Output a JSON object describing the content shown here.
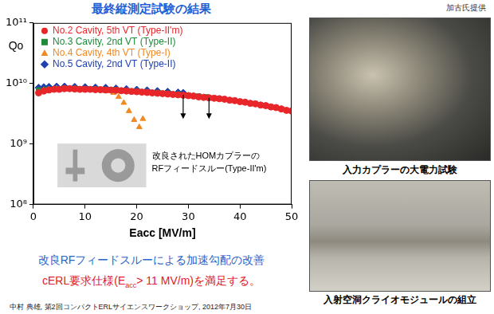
{
  "header": {
    "title": "最終縦測定試験の結果",
    "credit": "加古氏提供"
  },
  "chart_data": {
    "type": "scatter",
    "x_label": "Eacc [MV/m]",
    "y_label": "Qo",
    "log": "y",
    "grid": false,
    "legend": "upper left",
    "xlim": [
      0,
      50
    ],
    "xticks": [
      0,
      10,
      20,
      30,
      40,
      50
    ],
    "ylim": [
      100000000.0,
      100000000000.0
    ],
    "yticks": [
      {
        "value": 100000000.0,
        "label": "10⁸"
      },
      {
        "value": 1000000000.0,
        "label": "10⁹"
      },
      {
        "value": 10000000000.0,
        "label": "10¹⁰"
      },
      {
        "value": 100000000000.0,
        "label": "10¹¹"
      }
    ],
    "series": [
      {
        "name": "No.2 Cavity, 5th VT (Type-II'm)",
        "color": "#e8262a",
        "marker": "circle",
        "x": [
          1,
          2,
          3,
          4,
          5,
          6,
          7,
          8,
          9,
          10,
          11,
          12,
          13,
          14,
          15,
          16,
          17,
          18,
          19,
          20,
          21,
          22,
          23,
          24,
          25,
          26,
          27,
          28,
          29,
          30,
          31,
          32,
          33,
          34,
          35,
          36,
          37,
          38,
          39,
          40,
          41,
          42,
          43,
          44,
          45,
          46,
          47,
          48,
          49,
          50
        ],
        "values": [
          7000000000.0,
          7500000000.0,
          7800000000.0,
          8000000000.0,
          8000000000.0,
          8200000000.0,
          8200000000.0,
          8100000000.0,
          8000000000.0,
          8000000000.0,
          8000000000.0,
          7900000000.0,
          7900000000.0,
          7800000000.0,
          7800000000.0,
          7700000000.0,
          7600000000.0,
          7500000000.0,
          7400000000.0,
          7300000000.0,
          7200000000.0,
          7100000000.0,
          7000000000.0,
          6900000000.0,
          6800000000.0,
          6700000000.0,
          6600000000.0,
          6500000000.0,
          6400000000.0,
          6300000000.0,
          6200000000.0,
          6000000000.0,
          5900000000.0,
          5800000000.0,
          5700000000.0,
          5600000000.0,
          5500000000.0,
          5300000000.0,
          5200000000.0,
          5000000000.0,
          4900000000.0,
          4700000000.0,
          4600000000.0,
          4400000000.0,
          4300000000.0,
          4100000000.0,
          4000000000.0,
          3800000000.0,
          3600000000.0,
          3500000000.0
        ]
      },
      {
        "name": "No.3 Cavity, 2nd VT (Type-II)",
        "color": "#1f8a3a",
        "marker": "square",
        "x": [
          1,
          2.5,
          4,
          6,
          8,
          10,
          12,
          14,
          16,
          18,
          20,
          22,
          24,
          26,
          28,
          30,
          32,
          33.5
        ],
        "values": [
          7800000000.0,
          8000000000.0,
          8200000000.0,
          8300000000.0,
          8300000000.0,
          8200000000.0,
          8100000000.0,
          8000000000.0,
          7900000000.0,
          7700000000.0,
          7500000000.0,
          7300000000.0,
          7100000000.0,
          6900000000.0,
          6700000000.0,
          6400000000.0,
          6200000000.0,
          6000000000.0
        ]
      },
      {
        "name": "No.4 Cavity, 4th VT (Type-I)",
        "color": "#f08a24",
        "marker": "triangle",
        "x": [
          1,
          2,
          3,
          4.5,
          6,
          8,
          10,
          12,
          14,
          15.5,
          16.5,
          17.5,
          18.5,
          19.5,
          20.5,
          21.2
        ],
        "values": [
          7500000000.0,
          7800000000.0,
          8000000000.0,
          8200000000.0,
          8200000000.0,
          8100000000.0,
          8000000000.0,
          7800000000.0,
          7500000000.0,
          7000000000.0,
          6000000000.0,
          4800000000.0,
          3500000000.0,
          2500000000.0,
          1900000000.0,
          2600000000.0
        ]
      },
      {
        "name": "No.5 Cavity, 2nd VT (Type-II)",
        "color": "#2040b0",
        "marker": "diamond",
        "x": [
          1,
          2,
          3,
          4.5,
          6,
          8,
          10,
          12,
          14,
          16,
          18,
          20,
          22,
          24,
          26,
          28,
          29
        ],
        "values": [
          8500000000.0,
          8700000000.0,
          8800000000.0,
          8900000000.0,
          8900000000.0,
          8800000000.0,
          8700000000.0,
          8600000000.0,
          8500000000.0,
          8300000000.0,
          8100000000.0,
          7900000000.0,
          7700000000.0,
          7500000000.0,
          7300000000.0,
          7100000000.0,
          7000000000.0
        ]
      }
    ],
    "quench_arrows": [
      {
        "x": 29,
        "y_from": 6500000000.0,
        "y_to": 2600000000.0
      },
      {
        "x": 34,
        "y_from": 5800000000.0,
        "y_to": 2600000000.0
      }
    ],
    "inset_caption": [
      "改良されたHOMカプラーの",
      "RFフィードスルー(Type-II'm)"
    ]
  },
  "conclusions": {
    "improvement": "改良RFフィードスルーによる加速勾配の改善",
    "requirement": {
      "before": "cERL要求仕様(E",
      "sub": "acc",
      "after": "> 11 MV/m)を満足する。"
    }
  },
  "photos": [
    {
      "caption": "入力カプラーの大電力試験"
    },
    {
      "caption": "入射空洞クライオモジュールの組立"
    }
  ],
  "footer": "中村 典雄, 第2回コンパクトERLサイエンスワークショップ, 2012年7月30日"
}
